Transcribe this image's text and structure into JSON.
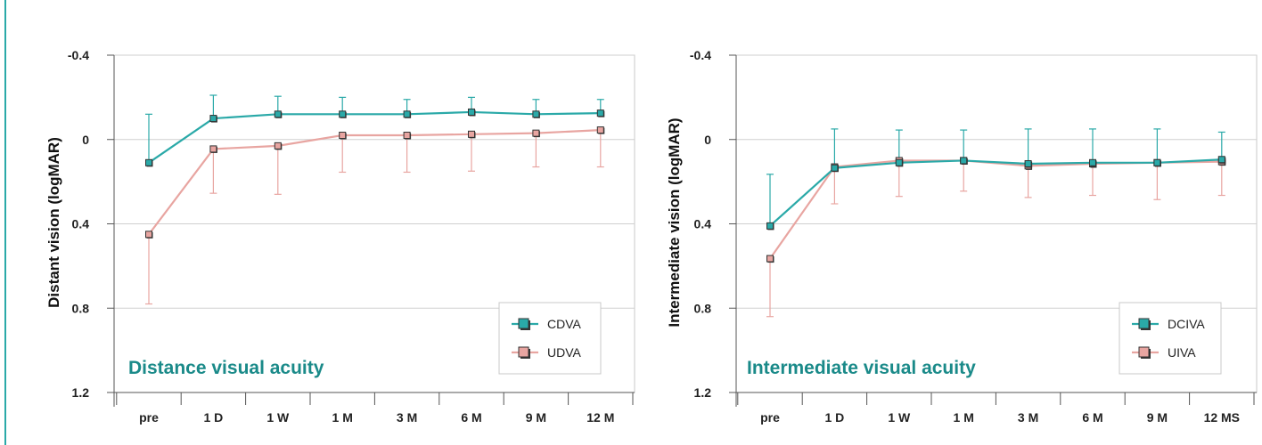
{
  "chart_data": [
    {
      "type": "line",
      "title": "Distance visual acuity",
      "ylabel": "Distant vision (logMAR)",
      "xlabel": "",
      "y_reversed": true,
      "ylim": [
        -0.4,
        1.2
      ],
      "yticks": [
        "-0.4",
        "0",
        "0.4",
        "0.8",
        "1.2"
      ],
      "ytick_values": [
        -0.4,
        0,
        0.4,
        0.8,
        1.2
      ],
      "categories": [
        "pre",
        "1 D",
        "1 W",
        "1 M",
        "3 M",
        "6 M",
        "9 M",
        "12 M"
      ],
      "grid": true,
      "legend_position": "bottom-right",
      "series": [
        {
          "name": "CDVA",
          "color": "#2aa9a8",
          "values": [
            0.11,
            -0.1,
            -0.12,
            -0.12,
            -0.12,
            -0.13,
            -0.12,
            -0.125
          ],
          "err_minus": [
            0.23,
            0.11,
            0.085,
            0.08,
            0.07,
            0.07,
            0.07,
            0.065
          ],
          "err_plus": [
            0,
            0,
            0,
            0,
            0,
            0,
            0,
            0
          ]
        },
        {
          "name": "UDVA",
          "color": "#e8a5a1",
          "values": [
            0.45,
            0.045,
            0.03,
            -0.02,
            -0.02,
            -0.025,
            -0.03,
            -0.045
          ],
          "err_minus": [
            0,
            0,
            0,
            0,
            0,
            0,
            0,
            0
          ],
          "err_plus": [
            0.33,
            0.21,
            0.23,
            0.175,
            0.175,
            0.175,
            0.16,
            0.175
          ]
        }
      ]
    },
    {
      "type": "line",
      "title": "Intermediate visual acuity",
      "ylabel": "Intermediate vision (logMAR)",
      "xlabel": "",
      "y_reversed": true,
      "ylim": [
        -0.4,
        1.2
      ],
      "yticks": [
        "-0.4",
        "0",
        "0.4",
        "0.8",
        "1.2"
      ],
      "ytick_values": [
        -0.4,
        0,
        0.4,
        0.8,
        1.2
      ],
      "categories": [
        "pre",
        "1 D",
        "1 W",
        "1 M",
        "3 M",
        "6 M",
        "9 M",
        "12 MS"
      ],
      "grid": true,
      "legend_position": "bottom-right",
      "series": [
        {
          "name": "DCIVA",
          "color": "#2aa9a8",
          "values": [
            0.41,
            0.135,
            0.11,
            0.1,
            0.115,
            0.11,
            0.11,
            0.095
          ],
          "err_minus": [
            0.245,
            0.185,
            0.155,
            0.145,
            0.165,
            0.16,
            0.16,
            0.13
          ],
          "err_plus": [
            0,
            0,
            0,
            0,
            0,
            0,
            0,
            0
          ]
        },
        {
          "name": "UIVA",
          "color": "#e8a5a1",
          "values": [
            0.565,
            0.13,
            0.1,
            0.1,
            0.125,
            0.115,
            0.11,
            0.105
          ],
          "err_minus": [
            0,
            0,
            0,
            0,
            0,
            0,
            0,
            0
          ],
          "err_plus": [
            0.275,
            0.175,
            0.17,
            0.145,
            0.15,
            0.15,
            0.175,
            0.16
          ]
        }
      ]
    }
  ]
}
